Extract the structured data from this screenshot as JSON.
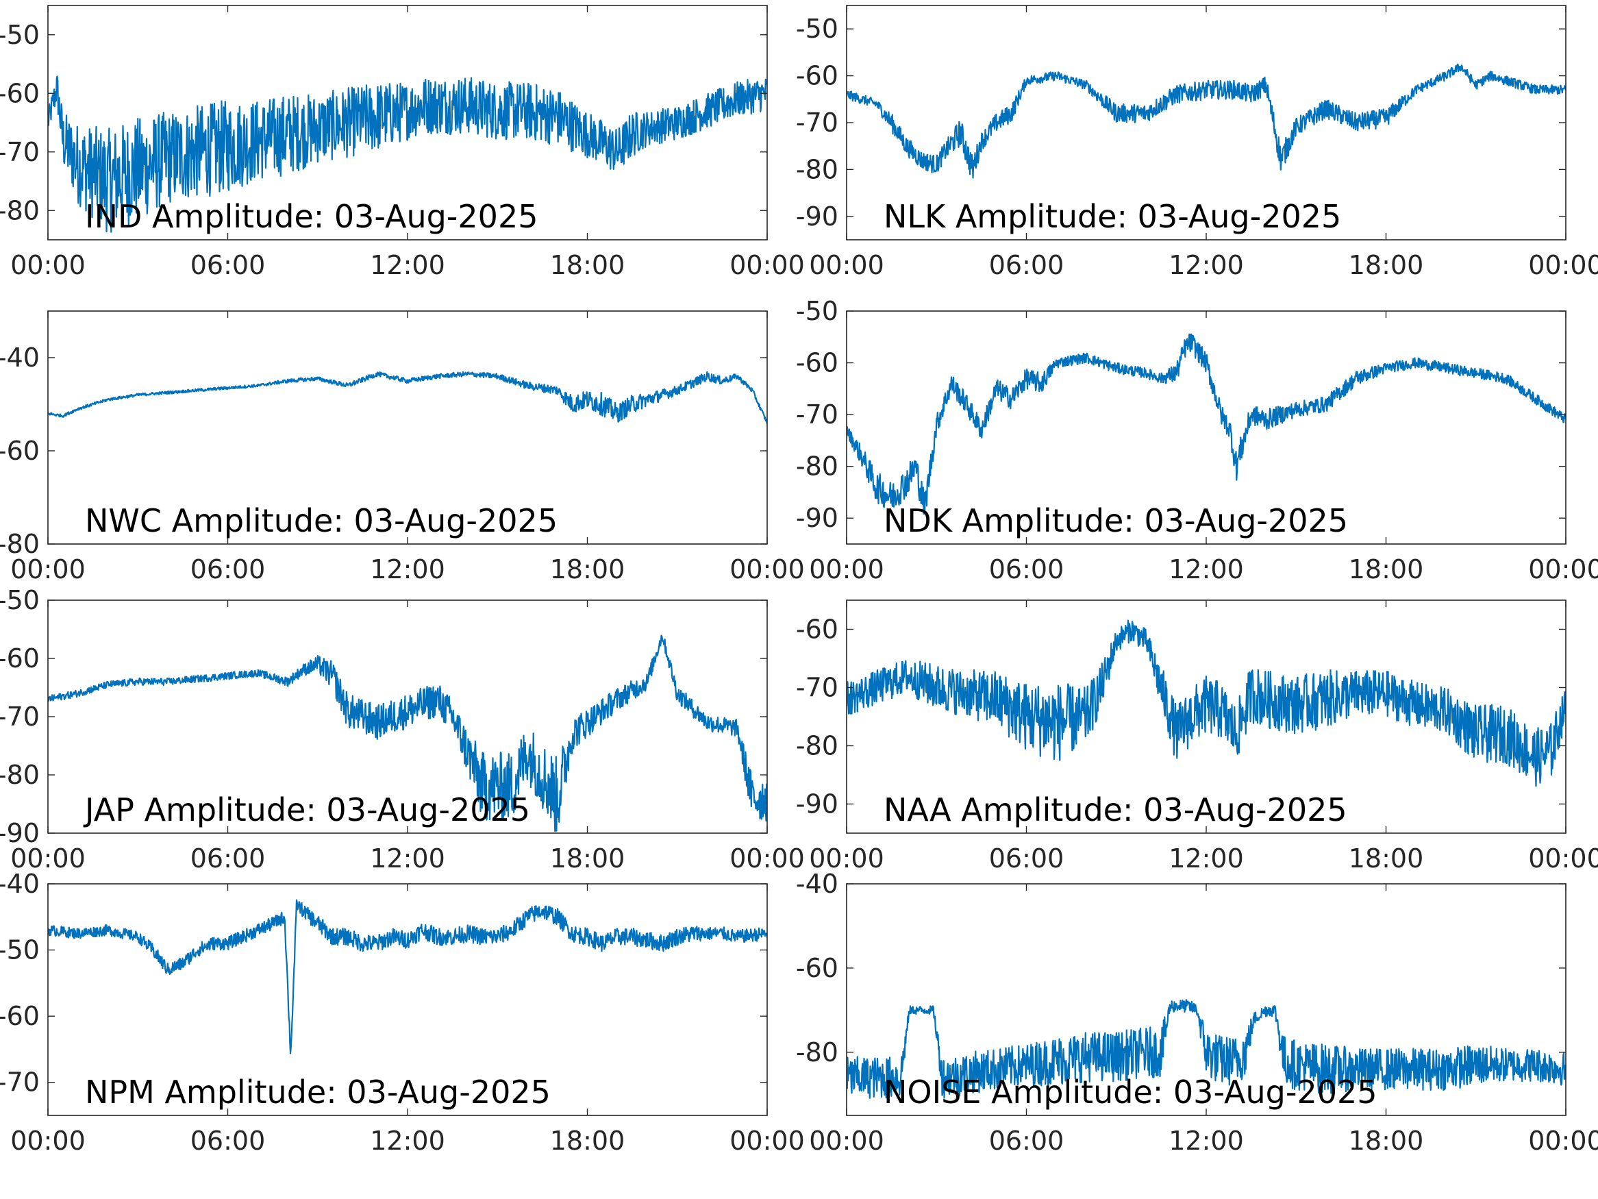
{
  "figure": {
    "line_color": "#0072BD",
    "axis_color": "#262626",
    "background": "#ffffff"
  },
  "chart_data": [
    {
      "type": "line",
      "title": "IND Amplitude: 03-Aug-2025",
      "x_ticks": [
        "00:00",
        "06:00",
        "12:00",
        "18:00",
        "00:00"
      ],
      "xlim": [
        0,
        24
      ],
      "y_ticks": [
        "-50",
        "-60",
        "-70",
        "-80"
      ],
      "ylim": [
        -85,
        -45
      ],
      "series": [
        {
          "x": [
            0,
            0.3,
            0.5,
            1,
            2,
            3,
            4,
            5,
            6,
            7,
            8,
            9,
            10,
            11,
            12,
            12.5,
            13,
            14,
            15,
            16,
            17,
            18,
            19,
            19.5,
            20,
            21,
            22,
            23,
            24
          ],
          "values": [
            -65,
            -59,
            -68,
            -72,
            -75,
            -73,
            -71,
            -70,
            -69,
            -68,
            -67,
            -66,
            -65,
            -64,
            -63,
            -62,
            -62,
            -62,
            -63,
            -63,
            -64,
            -67,
            -70,
            -67,
            -66,
            -65,
            -63,
            -61,
            -60
          ],
          "noise": [
            2,
            3,
            5,
            7,
            9,
            9,
            8,
            8,
            8,
            7,
            7,
            6,
            6,
            6,
            5,
            5,
            5,
            5,
            5,
            5,
            5,
            4,
            4,
            4,
            3,
            3,
            3,
            3,
            3
          ]
        }
      ]
    },
    {
      "type": "line",
      "title": "NLK Amplitude: 03-Aug-2025",
      "x_ticks": [
        "00:00",
        "06:00",
        "12:00",
        "18:00",
        "00:00"
      ],
      "xlim": [
        0,
        24
      ],
      "y_ticks": [
        "-50",
        "-60",
        "-70",
        "-80",
        "-90"
      ],
      "ylim": [
        -95,
        -45
      ],
      "series": [
        {
          "x": [
            0,
            1,
            1.5,
            2,
            2.5,
            3,
            3.3,
            3.8,
            4.2,
            4.5,
            5,
            5.5,
            6,
            7,
            8,
            9,
            10,
            11,
            12,
            13,
            13.5,
            14,
            14.5,
            15,
            16,
            17,
            18,
            19,
            20,
            20.5,
            21,
            21.5,
            22,
            23,
            24
          ],
          "values": [
            -64,
            -66,
            -70,
            -75,
            -78,
            -79,
            -76,
            -72,
            -80,
            -74,
            -70,
            -68,
            -61,
            -60,
            -62,
            -68,
            -68,
            -64,
            -63,
            -63,
            -64,
            -62,
            -78,
            -71,
            -67,
            -70,
            -69,
            -63,
            -60,
            -58,
            -62,
            -60,
            -61,
            -63,
            -63
          ],
          "noise": [
            1,
            1,
            2,
            2,
            2,
            2,
            2,
            3,
            3,
            2,
            2,
            2,
            1,
            1,
            1,
            2,
            2,
            2,
            2,
            2,
            2,
            2,
            3,
            2,
            2,
            2,
            2,
            1,
            1,
            1,
            1,
            1,
            1,
            1,
            1
          ]
        }
      ]
    },
    {
      "type": "line",
      "title": "NWC Amplitude: 03-Aug-2025",
      "x_ticks": [
        "00:00",
        "06:00",
        "12:00",
        "18:00",
        "00:00"
      ],
      "xlim": [
        0,
        24
      ],
      "y_ticks": [
        "-40",
        "-60",
        "-80"
      ],
      "ylim": [
        -80,
        -30
      ],
      "series": [
        {
          "x": [
            0,
            0.5,
            1,
            2,
            3,
            4,
            5,
            6,
            7,
            8,
            9,
            10,
            11,
            12,
            13,
            14,
            15,
            16,
            17,
            17.5,
            18,
            18.5,
            19,
            19.5,
            20,
            21,
            22,
            22.5,
            23,
            23.5,
            24
          ],
          "values": [
            -52,
            -52.5,
            -51,
            -49,
            -48,
            -47.5,
            -47,
            -46.5,
            -46,
            -45,
            -44.5,
            -46,
            -43.5,
            -45,
            -44,
            -43.5,
            -44,
            -46,
            -47,
            -50,
            -49,
            -50,
            -52,
            -50,
            -49,
            -47,
            -44,
            -45,
            -44,
            -47,
            -54
          ],
          "noise": [
            0.3,
            0.3,
            0.3,
            0.3,
            0.3,
            0.3,
            0.3,
            0.3,
            0.3,
            0.4,
            0.4,
            0.5,
            0.5,
            0.5,
            0.5,
            0.5,
            0.6,
            0.8,
            1,
            2,
            2,
            2.5,
            2,
            2,
            1.5,
            1,
            1,
            0.8,
            0.6,
            0.5,
            0.4
          ]
        }
      ]
    },
    {
      "type": "line",
      "title": "NDK Amplitude: 03-Aug-2025",
      "x_ticks": [
        "00:00",
        "06:00",
        "12:00",
        "18:00",
        "00:00"
      ],
      "xlim": [
        0,
        24
      ],
      "y_ticks": [
        "-50",
        "-60",
        "-70",
        "-80",
        "-90"
      ],
      "ylim": [
        -95,
        -50
      ],
      "series": [
        {
          "x": [
            0,
            0.5,
            1,
            1.5,
            2,
            2.3,
            2.6,
            3,
            3.5,
            4,
            4.5,
            5,
            5.5,
            6,
            6.5,
            7,
            8,
            9,
            10,
            10.5,
            11,
            11.3,
            11.5,
            12,
            12.5,
            12.8,
            13,
            13.5,
            14,
            15,
            16,
            17,
            18,
            19,
            20,
            21,
            22,
            23,
            24
          ],
          "values": [
            -73,
            -78,
            -84,
            -86,
            -83,
            -80,
            -88,
            -72,
            -64,
            -68,
            -73,
            -65,
            -67,
            -63,
            -64,
            -60,
            -59,
            -61,
            -62,
            -63,
            -62,
            -57,
            -56,
            -60,
            -70,
            -73,
            -80,
            -70,
            -71,
            -69,
            -68,
            -63,
            -61,
            -60,
            -61,
            -62,
            -63,
            -67,
            -71
          ],
          "noise": [
            1,
            2,
            3,
            3,
            3,
            3,
            3,
            2,
            2,
            2,
            2,
            2,
            2,
            2,
            2,
            1,
            1,
            1,
            1,
            1,
            2,
            2,
            2,
            2,
            2,
            2,
            3,
            2,
            2,
            1.5,
            1.5,
            1.5,
            1,
            1,
            1,
            1,
            1,
            1,
            1
          ]
        }
      ]
    },
    {
      "type": "line",
      "title": "JAP Amplitude: 03-Aug-2025",
      "x_ticks": [
        "00:00",
        "06:00",
        "12:00",
        "18:00",
        "00:00"
      ],
      "xlim": [
        0,
        24
      ],
      "y_ticks": [
        "-50",
        "-60",
        "-70",
        "-80",
        "-90"
      ],
      "ylim": [
        -90,
        -50
      ],
      "series": [
        {
          "x": [
            0,
            1,
            2,
            3,
            4,
            5,
            6,
            7,
            8,
            8.5,
            9,
            9.5,
            10,
            11,
            12,
            13,
            13.5,
            14,
            14.5,
            15,
            15.5,
            16,
            16.5,
            17,
            17.5,
            18,
            19,
            20,
            20.5,
            21,
            22,
            23,
            23.5,
            24
          ],
          "values": [
            -67,
            -66,
            -64.5,
            -64,
            -64,
            -63.5,
            -63,
            -62.5,
            -64,
            -62,
            -61,
            -63,
            -69,
            -71,
            -69,
            -67,
            -70,
            -76,
            -82,
            -82,
            -82,
            -76,
            -80,
            -84,
            -73,
            -71,
            -67,
            -64,
            -56,
            -66,
            -71,
            -72,
            -84,
            -84
          ],
          "noise": [
            0.6,
            0.6,
            0.6,
            0.6,
            0.6,
            0.6,
            0.6,
            0.6,
            0.8,
            1,
            1.5,
            2.5,
            3,
            3,
            3,
            3,
            3,
            4,
            6,
            6,
            6,
            5,
            6,
            7,
            3,
            2.5,
            2,
            1.5,
            1,
            1.5,
            1.5,
            1.5,
            4,
            4
          ]
        }
      ]
    },
    {
      "type": "line",
      "title": "NAA Amplitude: 03-Aug-2025",
      "x_ticks": [
        "00:00",
        "06:00",
        "12:00",
        "18:00",
        "00:00"
      ],
      "xlim": [
        0,
        24
      ],
      "y_ticks": [
        "-60",
        "-70",
        "-80",
        "-90"
      ],
      "ylim": [
        -95,
        -55
      ],
      "series": [
        {
          "x": [
            0,
            1,
            2,
            3,
            4,
            5,
            6,
            7,
            8,
            8.5,
            9,
            9.5,
            10,
            10.5,
            11,
            11.5,
            12,
            12.5,
            13,
            13.5,
            14,
            15,
            16,
            17,
            18,
            19,
            20,
            21,
            22,
            22.5,
            23,
            23.5,
            24
          ],
          "values": [
            -72,
            -70,
            -68,
            -70,
            -71,
            -72,
            -75,
            -76,
            -75,
            -70,
            -62,
            -60,
            -62,
            -70,
            -78,
            -75,
            -73,
            -74,
            -78,
            -71,
            -72,
            -73,
            -72,
            -71,
            -71,
            -73,
            -74,
            -78,
            -78,
            -80,
            -82,
            -81,
            -73
          ],
          "noise": [
            3,
            3,
            3,
            4,
            4,
            5,
            6,
            7,
            5,
            4,
            2,
            2,
            2,
            4,
            5,
            5,
            5,
            5,
            5,
            5,
            5,
            5,
            5,
            4,
            4,
            4,
            4,
            5,
            5,
            5,
            5,
            5,
            3
          ]
        }
      ]
    },
    {
      "type": "line",
      "title": "NPM Amplitude: 03-Aug-2025",
      "x_ticks": [
        "00:00",
        "06:00",
        "12:00",
        "18:00",
        "00:00"
      ],
      "xlim": [
        0,
        24
      ],
      "y_ticks": [
        "-40",
        "-50",
        "-60",
        "-70"
      ],
      "ylim": [
        -75,
        -40
      ],
      "series": [
        {
          "x": [
            0,
            1,
            2,
            3,
            3.5,
            4,
            4.5,
            5,
            5.5,
            6,
            6.5,
            7,
            7.5,
            7.9,
            8.1,
            8.3,
            8.5,
            9,
            9.5,
            10,
            10.5,
            11,
            11.5,
            12,
            12.5,
            13,
            13.5,
            14,
            14.5,
            15,
            15.5,
            16,
            16.5,
            17,
            17.5,
            18,
            18.5,
            19,
            19.5,
            20,
            20.5,
            21,
            21.5,
            22,
            22.5,
            23,
            24
          ],
          "values": [
            -47,
            -47.5,
            -47,
            -48,
            -50,
            -53,
            -52,
            -50,
            -49,
            -49,
            -48,
            -47,
            -46,
            -45,
            -66,
            -43,
            -44,
            -46,
            -48,
            -48,
            -49,
            -49,
            -48,
            -48.5,
            -47,
            -48,
            -48,
            -47.5,
            -48,
            -48,
            -47,
            -45,
            -44,
            -45,
            -47.5,
            -48,
            -49,
            -48,
            -48,
            -48.5,
            -49,
            -48,
            -47.5,
            -47.5,
            -47.5,
            -48,
            -47.5
          ],
          "noise": [
            0.8,
            0.8,
            0.8,
            0.8,
            1,
            1,
            1,
            1,
            1,
            1,
            1,
            1,
            1,
            1,
            1,
            1,
            1,
            1.3,
            1.3,
            1.3,
            1.3,
            1.3,
            1.3,
            1.3,
            1.3,
            1.3,
            1.3,
            1.3,
            1.3,
            1.3,
            1.3,
            1.3,
            1.3,
            1.3,
            1.3,
            1.3,
            1.3,
            1.3,
            1.3,
            1.3,
            1.3,
            1.3,
            1.3,
            1,
            1,
            1,
            1
          ]
        }
      ]
    },
    {
      "type": "line",
      "title": "NOISE Amplitude: 03-Aug-2025",
      "x_ticks": [
        "00:00",
        "06:00",
        "12:00",
        "18:00",
        "00:00"
      ],
      "xlim": [
        0,
        24
      ],
      "y_ticks": [
        "-40",
        "-60",
        "-80"
      ],
      "ylim": [
        -95,
        -40
      ],
      "series": [
        {
          "x": [
            0,
            1,
            1.8,
            2.1,
            2.6,
            2.9,
            3.2,
            4,
            5,
            6,
            7,
            8,
            9,
            10,
            10.5,
            10.8,
            11,
            11.4,
            11.7,
            12,
            12.5,
            13,
            13.3,
            13.6,
            14,
            14.3,
            14.6,
            15,
            16,
            17,
            18,
            19,
            20,
            21,
            22,
            23,
            24
          ],
          "values": [
            -86,
            -86,
            -86,
            -70,
            -70,
            -70,
            -86,
            -85,
            -84,
            -83,
            -82,
            -81,
            -81,
            -80,
            -80,
            -69,
            -69,
            -69,
            -70,
            -80,
            -82,
            -82,
            -80,
            -72,
            -70,
            -70,
            -82,
            -83,
            -84,
            -84,
            -84,
            -84,
            -84,
            -83,
            -83,
            -83,
            -84
          ],
          "noise": [
            5,
            5,
            5,
            1,
            1,
            1,
            5,
            5,
            5,
            5,
            6,
            6,
            6,
            6,
            6,
            1.5,
            1.5,
            1.5,
            1.5,
            6,
            6,
            6,
            6,
            1.5,
            1.5,
            1.5,
            6,
            6,
            6,
            5,
            5,
            5,
            5,
            5,
            4,
            4,
            4
          ]
        }
      ]
    }
  ]
}
